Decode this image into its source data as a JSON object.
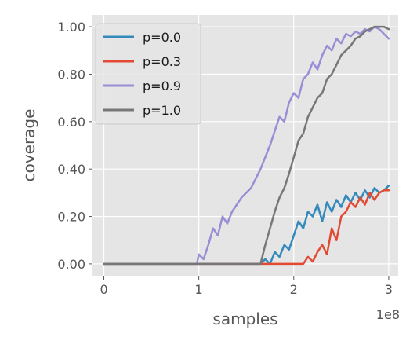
{
  "chart_data": {
    "type": "line",
    "title": "",
    "xlabel": "samples",
    "ylabel": "coverage",
    "x_offset_label": "1e8",
    "xlim": [
      -0.12,
      3.1
    ],
    "ylim": [
      -0.05,
      1.05
    ],
    "xticks": [
      0,
      1,
      2,
      3
    ],
    "xtick_labels": [
      "0",
      "1",
      "2",
      "3"
    ],
    "yticks": [
      0.0,
      0.2,
      0.4,
      0.6,
      0.8,
      1.0
    ],
    "ytick_labels": [
      "0.00",
      "0.20",
      "0.40",
      "0.60",
      "0.80",
      "1.00"
    ],
    "grid": true,
    "legend_position": "top-left",
    "series": [
      {
        "name": "p=0.0",
        "color": "#348ABD",
        "x": [
          0,
          0.5,
          1.0,
          1.5,
          1.65,
          1.7,
          1.75,
          1.8,
          1.85,
          1.9,
          1.95,
          2.0,
          2.05,
          2.1,
          2.15,
          2.2,
          2.25,
          2.3,
          2.35,
          2.4,
          2.45,
          2.5,
          2.55,
          2.6,
          2.65,
          2.7,
          2.75,
          2.8,
          2.85,
          2.9,
          2.95,
          3.0
        ],
        "y": [
          0,
          0,
          0,
          0,
          0,
          0.02,
          0.0,
          0.05,
          0.03,
          0.08,
          0.06,
          0.12,
          0.18,
          0.15,
          0.22,
          0.2,
          0.25,
          0.18,
          0.26,
          0.22,
          0.27,
          0.24,
          0.29,
          0.26,
          0.3,
          0.27,
          0.31,
          0.28,
          0.32,
          0.3,
          0.31,
          0.33
        ]
      },
      {
        "name": "p=0.3",
        "color": "#E24A33",
        "x": [
          0,
          0.5,
          1.0,
          1.5,
          1.8,
          2.0,
          2.1,
          2.15,
          2.2,
          2.25,
          2.3,
          2.35,
          2.4,
          2.45,
          2.5,
          2.55,
          2.6,
          2.65,
          2.7,
          2.75,
          2.8,
          2.85,
          2.9,
          2.95,
          3.0
        ],
        "y": [
          0,
          0,
          0,
          0,
          0,
          0,
          0.0,
          0.03,
          0.01,
          0.05,
          0.08,
          0.04,
          0.15,
          0.1,
          0.2,
          0.22,
          0.26,
          0.24,
          0.28,
          0.25,
          0.3,
          0.27,
          0.3,
          0.31,
          0.31
        ]
      },
      {
        "name": "p=0.9",
        "color": "#988ED5",
        "x": [
          0,
          0.5,
          0.98,
          1.0,
          1.05,
          1.1,
          1.15,
          1.2,
          1.25,
          1.3,
          1.35,
          1.4,
          1.45,
          1.5,
          1.55,
          1.6,
          1.65,
          1.7,
          1.75,
          1.8,
          1.85,
          1.9,
          1.95,
          2.0,
          2.05,
          2.1,
          2.15,
          2.2,
          2.25,
          2.3,
          2.35,
          2.4,
          2.45,
          2.5,
          2.55,
          2.6,
          2.65,
          2.7,
          2.75,
          2.8,
          2.85,
          2.9,
          2.95,
          3.0
        ],
        "y": [
          0,
          0,
          0,
          0.04,
          0.02,
          0.08,
          0.15,
          0.12,
          0.2,
          0.17,
          0.22,
          0.25,
          0.28,
          0.3,
          0.32,
          0.36,
          0.4,
          0.45,
          0.5,
          0.56,
          0.62,
          0.6,
          0.68,
          0.72,
          0.7,
          0.78,
          0.8,
          0.85,
          0.82,
          0.88,
          0.92,
          0.9,
          0.95,
          0.93,
          0.97,
          0.96,
          0.98,
          0.97,
          0.99,
          0.98,
          1.0,
          0.99,
          0.97,
          0.95
        ]
      },
      {
        "name": "p=1.0",
        "color": "#777777",
        "x": [
          0,
          0.5,
          1.0,
          1.5,
          1.65,
          1.7,
          1.75,
          1.8,
          1.85,
          1.9,
          1.95,
          2.0,
          2.05,
          2.1,
          2.15,
          2.2,
          2.25,
          2.3,
          2.35,
          2.4,
          2.45,
          2.5,
          2.55,
          2.6,
          2.65,
          2.7,
          2.75,
          2.8,
          2.85,
          2.9,
          2.95,
          3.0
        ],
        "y": [
          0,
          0,
          0,
          0,
          0,
          0.08,
          0.15,
          0.22,
          0.28,
          0.32,
          0.38,
          0.45,
          0.52,
          0.55,
          0.62,
          0.66,
          0.7,
          0.72,
          0.78,
          0.8,
          0.84,
          0.88,
          0.9,
          0.92,
          0.95,
          0.96,
          0.98,
          0.99,
          1.0,
          1.0,
          1.0,
          0.99
        ]
      }
    ]
  }
}
